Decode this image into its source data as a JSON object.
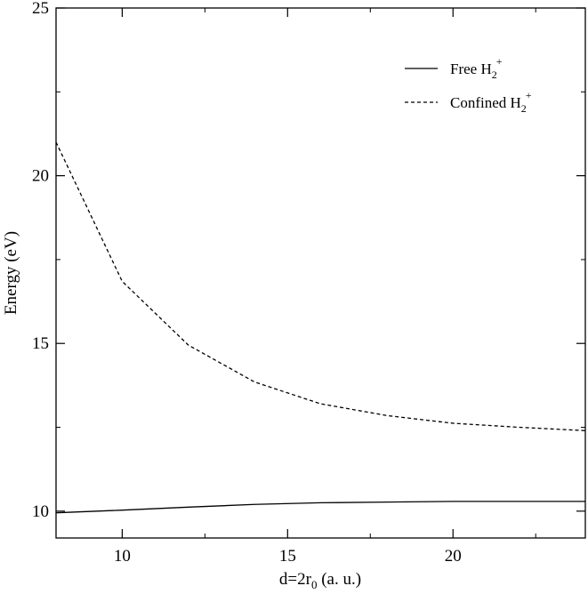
{
  "chart_data": {
    "type": "line",
    "xlabel": "d=2r",
    "xlabel_sub": "0",
    "xlabel_suffix": " (a. u.)",
    "ylabel": "Energy (eV)",
    "xlim": [
      8,
      24
    ],
    "ylim": [
      9.2,
      25
    ],
    "xticks": [
      10,
      15,
      20
    ],
    "yticks": [
      10,
      15,
      20,
      25
    ],
    "grid": false,
    "legend_position": "top-right",
    "series": [
      {
        "name": "Free H2+",
        "legend_base": "Free H",
        "legend_sub": "2",
        "legend_sup": "+",
        "style": "solid",
        "x": [
          8,
          10,
          12,
          14,
          16,
          18,
          20,
          22,
          24
        ],
        "y": [
          9.95,
          10.03,
          10.12,
          10.2,
          10.25,
          10.27,
          10.29,
          10.29,
          10.29
        ]
      },
      {
        "name": "Confined H2+",
        "legend_base": "Confined H",
        "legend_sub": "2",
        "legend_sup": "+",
        "style": "dashed",
        "x": [
          8,
          10,
          12,
          14,
          16,
          18,
          20,
          22,
          24
        ],
        "y": [
          21.0,
          16.85,
          14.95,
          13.85,
          13.2,
          12.85,
          12.62,
          12.5,
          12.4
        ]
      }
    ]
  }
}
